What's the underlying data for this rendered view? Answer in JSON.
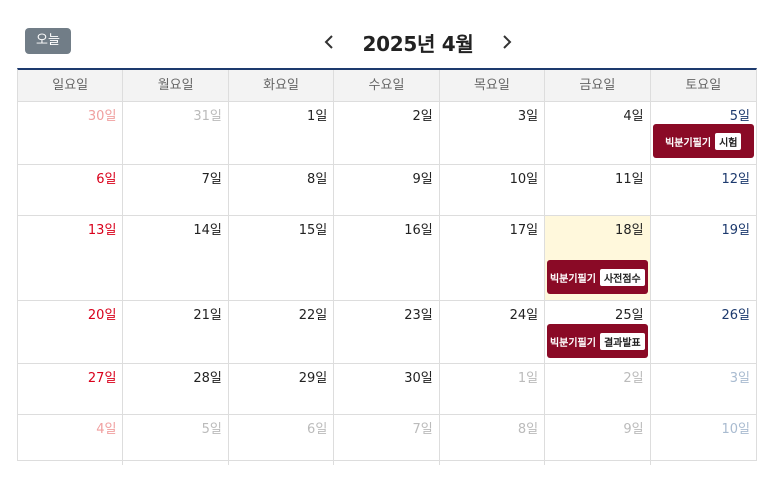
{
  "toolbar": {
    "today_label": "오늘",
    "month_title": "2025년 4월"
  },
  "weekdays": [
    "일요일",
    "월요일",
    "화요일",
    "수요일",
    "목요일",
    "금요일",
    "토요일"
  ],
  "weeks": [
    [
      {
        "label": "30일",
        "other": true
      },
      {
        "label": "31일",
        "other": true
      },
      {
        "label": "1일"
      },
      {
        "label": "2일"
      },
      {
        "label": "3일"
      },
      {
        "label": "4일"
      },
      {
        "label": "5일",
        "event": {
          "name": "빅분기필기",
          "tag": "시험"
        }
      }
    ],
    [
      {
        "label": "6일"
      },
      {
        "label": "7일"
      },
      {
        "label": "8일"
      },
      {
        "label": "9일"
      },
      {
        "label": "10일"
      },
      {
        "label": "11일"
      },
      {
        "label": "12일"
      }
    ],
    [
      {
        "label": "13일"
      },
      {
        "label": "14일"
      },
      {
        "label": "15일"
      },
      {
        "label": "16일"
      },
      {
        "label": "17일"
      },
      {
        "label": "18일",
        "highlight": true,
        "event": {
          "name": "빅분기필기",
          "tag": "사전점수"
        }
      },
      {
        "label": "19일"
      }
    ],
    [
      {
        "label": "20일"
      },
      {
        "label": "21일"
      },
      {
        "label": "22일"
      },
      {
        "label": "23일"
      },
      {
        "label": "24일"
      },
      {
        "label": "25일",
        "event": {
          "name": "빅분기필기",
          "tag": "결과발표"
        }
      },
      {
        "label": "26일"
      }
    ],
    [
      {
        "label": "27일"
      },
      {
        "label": "28일"
      },
      {
        "label": "29일"
      },
      {
        "label": "30일"
      },
      {
        "label": "1일",
        "other": true
      },
      {
        "label": "2일",
        "other": true
      },
      {
        "label": "3일",
        "other": true
      }
    ],
    [
      {
        "label": "4일",
        "other": true
      },
      {
        "label": "5일",
        "other": true
      },
      {
        "label": "6일",
        "other": true
      },
      {
        "label": "7일",
        "other": true
      },
      {
        "label": "8일",
        "other": true
      },
      {
        "label": "9일",
        "other": true
      },
      {
        "label": "10일",
        "other": true
      }
    ]
  ],
  "colors": {
    "event": "#8a0a26",
    "sunday": "#d9001b",
    "saturday": "#1d3a6e",
    "highlight": "#fff8dc",
    "today_button": "#717d87"
  },
  "icons": {
    "prev": "chevron-left-icon",
    "next": "chevron-right-icon"
  }
}
